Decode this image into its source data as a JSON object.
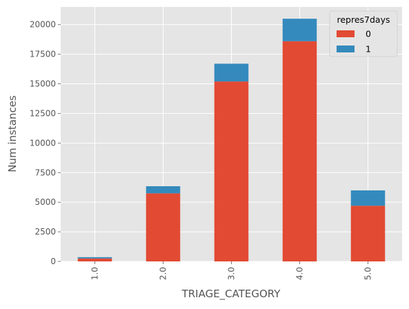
{
  "chart_data": {
    "type": "bar",
    "stacked": true,
    "title": "",
    "xlabel": "TRIAGE_CATEGORY",
    "ylabel": "Num instances",
    "categories": [
      "1.0",
      "2.0",
      "3.0",
      "4.0",
      "5.0"
    ],
    "series": [
      {
        "name": "0",
        "color": "#E24A33",
        "values": [
          250,
          5750,
          15200,
          18600,
          4700
        ]
      },
      {
        "name": "1",
        "color": "#348ABD",
        "values": [
          110,
          600,
          1500,
          1900,
          1300
        ]
      }
    ],
    "ylim": [
      0,
      21500
    ],
    "yticks": [
      0,
      2500,
      5000,
      7500,
      10000,
      12500,
      15000,
      17500,
      20000
    ],
    "ytick_labels": [
      "0",
      "2500",
      "5000",
      "7500",
      "10000",
      "12500",
      "15000",
      "17500",
      "20000"
    ],
    "grid": true,
    "legend": {
      "title": "repres7days",
      "placement": "top-right"
    },
    "style": {
      "background": "#E5E5E5",
      "grid_color": "#FFFFFF"
    }
  }
}
